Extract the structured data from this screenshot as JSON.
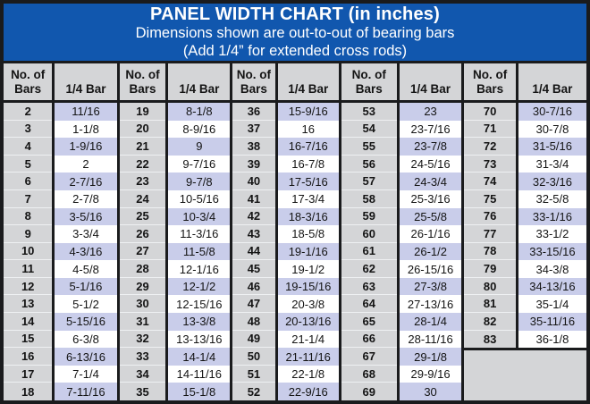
{
  "header": {
    "title": "PANEL WIDTH CHART (in inches)",
    "subtitle1": "Dimensions shown are out-to-out of bearing bars",
    "subtitle2": "(Add 1/4” for extended cross rods)"
  },
  "table": {
    "col_headers": {
      "bars": "No. of Bars",
      "quarter": "1/4 Bar"
    },
    "pairs": [
      {
        "rows": [
          [
            "2",
            "11/16"
          ],
          [
            "3",
            "1-1/8"
          ],
          [
            "4",
            "1-9/16"
          ],
          [
            "5",
            "2"
          ],
          [
            "6",
            "2-7/16"
          ],
          [
            "7",
            "2-7/8"
          ],
          [
            "8",
            "3-5/16"
          ],
          [
            "9",
            "3-3/4"
          ],
          [
            "10",
            "4-3/16"
          ],
          [
            "11",
            "4-5/8"
          ],
          [
            "12",
            "5-1/16"
          ],
          [
            "13",
            "5-1/2"
          ],
          [
            "14",
            "5-15/16"
          ],
          [
            "15",
            "6-3/8"
          ],
          [
            "16",
            "6-13/16"
          ],
          [
            "17",
            "7-1/4"
          ],
          [
            "18",
            "7-11/16"
          ]
        ]
      },
      {
        "rows": [
          [
            "19",
            "8-1/8"
          ],
          [
            "20",
            "8-9/16"
          ],
          [
            "21",
            "9"
          ],
          [
            "22",
            "9-7/16"
          ],
          [
            "23",
            "9-7/8"
          ],
          [
            "24",
            "10-5/16"
          ],
          [
            "25",
            "10-3/4"
          ],
          [
            "26",
            "11-3/16"
          ],
          [
            "27",
            "11-5/8"
          ],
          [
            "28",
            "12-1/16"
          ],
          [
            "29",
            "12-1/2"
          ],
          [
            "30",
            "12-15/16"
          ],
          [
            "31",
            "13-3/8"
          ],
          [
            "32",
            "13-13/16"
          ],
          [
            "33",
            "14-1/4"
          ],
          [
            "34",
            "14-11/16"
          ],
          [
            "35",
            "15-1/8"
          ]
        ]
      },
      {
        "rows": [
          [
            "36",
            "15-9/16"
          ],
          [
            "37",
            "16"
          ],
          [
            "38",
            "16-7/16"
          ],
          [
            "39",
            "16-7/8"
          ],
          [
            "40",
            "17-5/16"
          ],
          [
            "41",
            "17-3/4"
          ],
          [
            "42",
            "18-3/16"
          ],
          [
            "43",
            "18-5/8"
          ],
          [
            "44",
            "19-1/16"
          ],
          [
            "45",
            "19-1/2"
          ],
          [
            "46",
            "19-15/16"
          ],
          [
            "47",
            "20-3/8"
          ],
          [
            "48",
            "20-13/16"
          ],
          [
            "49",
            "21-1/4"
          ],
          [
            "50",
            "21-11/16"
          ],
          [
            "51",
            "22-1/8"
          ],
          [
            "52",
            "22-9/16"
          ]
        ]
      },
      {
        "rows": [
          [
            "53",
            "23"
          ],
          [
            "54",
            "23-7/16"
          ],
          [
            "55",
            "23-7/8"
          ],
          [
            "56",
            "24-5/16"
          ],
          [
            "57",
            "24-3/4"
          ],
          [
            "58",
            "25-3/16"
          ],
          [
            "59",
            "25-5/8"
          ],
          [
            "60",
            "26-1/16"
          ],
          [
            "61",
            "26-1/2"
          ],
          [
            "62",
            "26-15/16"
          ],
          [
            "63",
            "27-3/8"
          ],
          [
            "64",
            "27-13/16"
          ],
          [
            "65",
            "28-1/4"
          ],
          [
            "66",
            "28-11/16"
          ],
          [
            "67",
            "29-1/8"
          ],
          [
            "68",
            "29-9/16"
          ],
          [
            "69",
            "30"
          ]
        ]
      },
      {
        "rows": [
          [
            "70",
            "30-7/16"
          ],
          [
            "71",
            "30-7/8"
          ],
          [
            "72",
            "31-5/16"
          ],
          [
            "73",
            "31-3/4"
          ],
          [
            "74",
            "32-3/16"
          ],
          [
            "75",
            "32-5/8"
          ],
          [
            "76",
            "33-1/16"
          ],
          [
            "77",
            "33-1/2"
          ],
          [
            "78",
            "33-15/16"
          ],
          [
            "79",
            "34-3/8"
          ],
          [
            "80",
            "34-13/16"
          ],
          [
            "81",
            "35-1/4"
          ],
          [
            "82",
            "35-11/16"
          ],
          [
            "83",
            "36-1/8"
          ]
        ]
      }
    ]
  },
  "colors": {
    "band_bg": "#1157ae",
    "band_text": "#ffffff",
    "border": "#1a1b1d",
    "gray_cell_bg": "#d4d5d7",
    "value_alt_bg": "#c9cdea",
    "value_bg": "#ffffff",
    "text": "#141414"
  }
}
